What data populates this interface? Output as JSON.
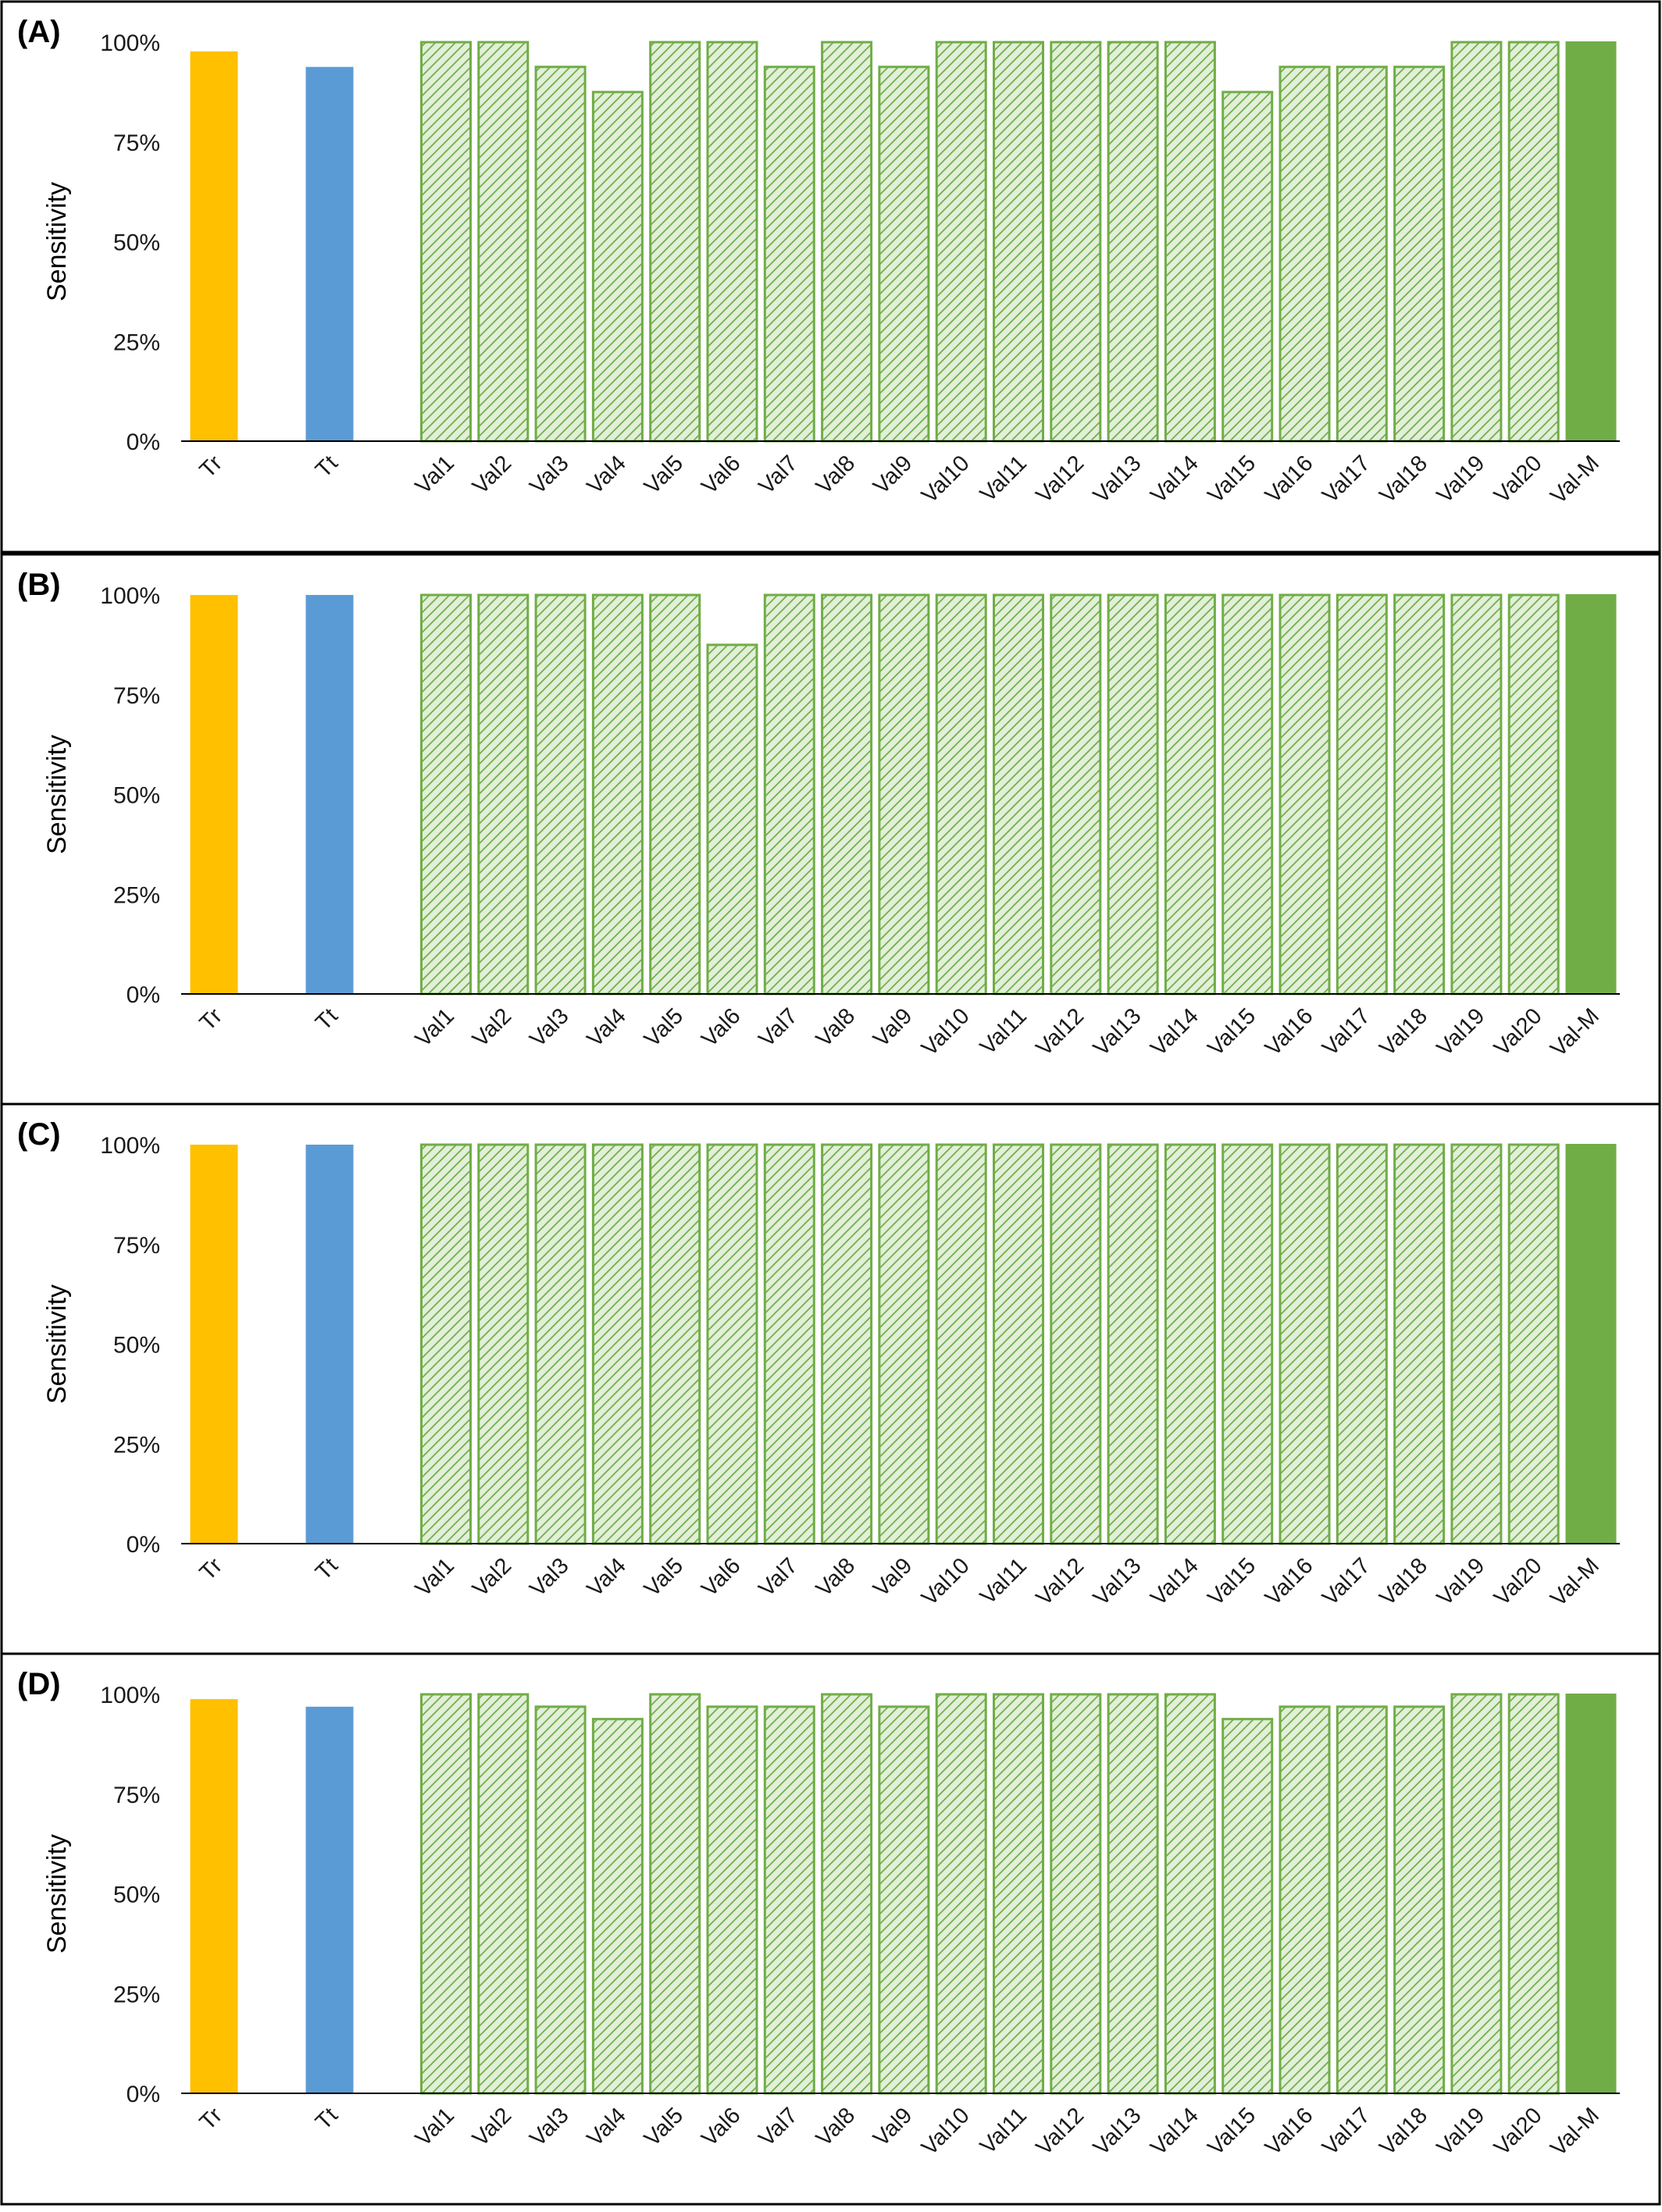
{
  "colors": {
    "train": "#FFC000",
    "test": "#5B9BD5",
    "validation_hatch": "#70AD47",
    "validation_hatch_bg": "#E2EFD9",
    "validation_merged": "#70AD47"
  },
  "chart_data": [
    {
      "type": "bar",
      "panel_label": "(A)",
      "ylabel": "Sensitivity",
      "ylim": [
        0,
        100
      ],
      "yticks": [
        "0%",
        "25%",
        "50%",
        "75%",
        "100%"
      ],
      "categories": [
        "Tr",
        "Tt",
        "Val1",
        "Val2",
        "Val3",
        "Val4",
        "Val5",
        "Val6",
        "Val7",
        "Val8",
        "Val9",
        "Val10",
        "Val11",
        "Val12",
        "Val13",
        "Val14",
        "Val15",
        "Val16",
        "Val17",
        "Val18",
        "Val19",
        "Val20",
        "Val-M"
      ],
      "values": [
        97.7,
        93.8,
        100,
        100,
        93.8,
        87.5,
        100,
        100,
        93.8,
        100,
        93.8,
        100,
        100,
        100,
        100,
        100,
        87.5,
        93.8,
        93.8,
        93.8,
        100,
        100,
        100
      ],
      "grid": false
    },
    {
      "type": "bar",
      "panel_label": "(B)",
      "ylabel": "Sensitivity",
      "ylim": [
        0,
        100
      ],
      "yticks": [
        "0%",
        "25%",
        "50%",
        "75%",
        "100%"
      ],
      "categories": [
        "Tr",
        "Tt",
        "Val1",
        "Val2",
        "Val3",
        "Val4",
        "Val5",
        "Val6",
        "Val7",
        "Val8",
        "Val9",
        "Val10",
        "Val11",
        "Val12",
        "Val13",
        "Val14",
        "Val15",
        "Val16",
        "Val17",
        "Val18",
        "Val19",
        "Val20",
        "Val-M"
      ],
      "values": [
        100,
        100,
        100,
        100,
        100,
        100,
        100,
        87.5,
        100,
        100,
        100,
        100,
        100,
        100,
        100,
        100,
        100,
        100,
        100,
        100,
        100,
        100,
        100
      ],
      "grid": false
    },
    {
      "type": "bar",
      "panel_label": "(C)",
      "ylabel": "Sensitivity",
      "ylim": [
        0,
        100
      ],
      "yticks": [
        "0%",
        "25%",
        "50%",
        "75%",
        "100%"
      ],
      "categories": [
        "Tr",
        "Tt",
        "Val1",
        "Val2",
        "Val3",
        "Val4",
        "Val5",
        "Val6",
        "Val7",
        "Val8",
        "Val9",
        "Val10",
        "Val11",
        "Val12",
        "Val13",
        "Val14",
        "Val15",
        "Val16",
        "Val17",
        "Val18",
        "Val19",
        "Val20",
        "Val-M"
      ],
      "values": [
        100,
        100,
        100,
        100,
        100,
        100,
        100,
        100,
        100,
        100,
        100,
        100,
        100,
        100,
        100,
        100,
        100,
        100,
        100,
        100,
        100,
        100,
        100
      ],
      "grid": false
    },
    {
      "type": "bar",
      "panel_label": "(D)",
      "ylabel": "Sensitivity",
      "ylim": [
        0,
        100
      ],
      "yticks": [
        "0%",
        "25%",
        "50%",
        "75%",
        "100%"
      ],
      "categories": [
        "Tr",
        "Tt",
        "Val1",
        "Val2",
        "Val3",
        "Val4",
        "Val5",
        "Val6",
        "Val7",
        "Val8",
        "Val9",
        "Val10",
        "Val11",
        "Val12",
        "Val13",
        "Val14",
        "Val15",
        "Val16",
        "Val17",
        "Val18",
        "Val19",
        "Val20",
        "Val-M"
      ],
      "values": [
        98.8,
        96.9,
        100,
        100,
        96.9,
        93.8,
        100,
        96.9,
        96.9,
        100,
        96.9,
        100,
        100,
        100,
        100,
        100,
        93.8,
        96.9,
        96.9,
        96.9,
        100,
        100,
        100
      ],
      "grid": false
    }
  ]
}
